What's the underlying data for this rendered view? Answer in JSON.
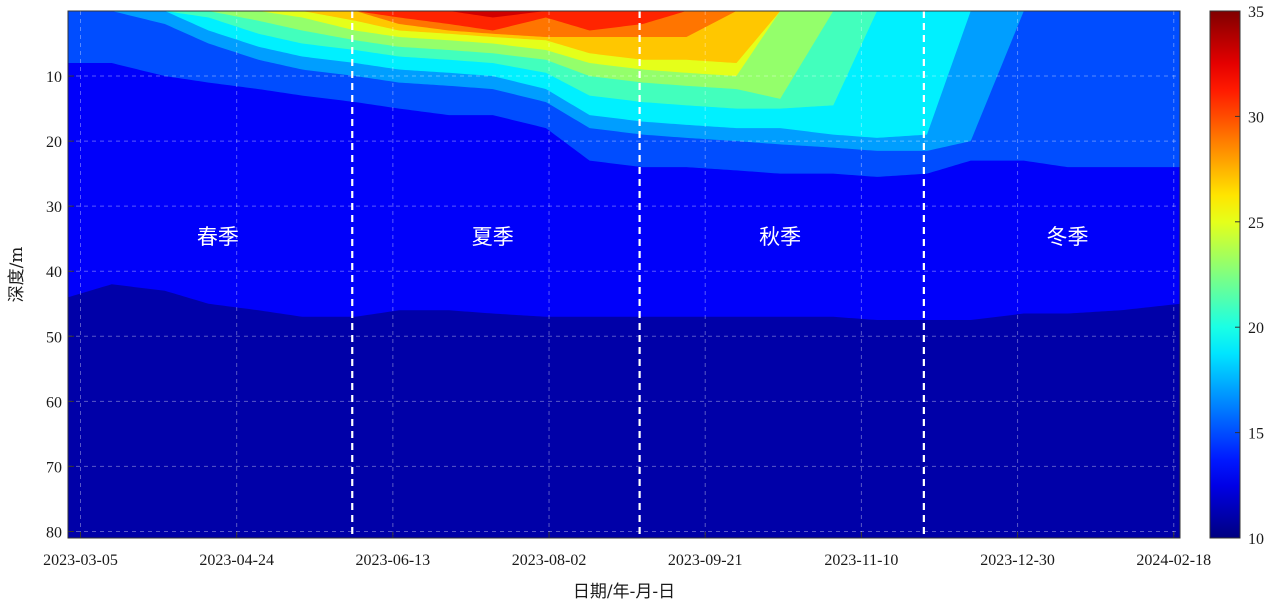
{
  "chart_data": {
    "type": "heatmap",
    "title": "",
    "xlabel": "日期/年-月-日",
    "ylabel": "深度/m",
    "x_ticks": [
      "2023-03-05",
      "2023-04-24",
      "2023-06-13",
      "2023-08-02",
      "2023-09-21",
      "2023-11-10",
      "2023-12-30",
      "2024-02-18"
    ],
    "x_range": [
      "2023-03-01",
      "2024-02-20"
    ],
    "y_ticks": [
      10,
      20,
      30,
      40,
      50,
      60,
      70,
      80
    ],
    "y_range": [
      0,
      81
    ],
    "y_inverted": true,
    "grid": true,
    "colorbar": {
      "ticks": [
        10,
        15,
        20,
        25,
        30,
        35
      ],
      "range": [
        10,
        35
      ],
      "colormap": "jet"
    },
    "season_boundaries": [
      "2023-05-31",
      "2023-08-31",
      "2023-11-30"
    ],
    "seasons": [
      {
        "label": "春季",
        "center_date": "2023-04-18"
      },
      {
        "label": "夏季",
        "center_date": "2023-07-15"
      },
      {
        "label": "秋季",
        "center_date": "2023-10-15"
      },
      {
        "label": "冬季",
        "center_date": "2024-01-15"
      }
    ],
    "isotherm_depths": {
      "dates": [
        "2023-03-01",
        "2023-03-15",
        "2023-04-01",
        "2023-04-15",
        "2023-05-01",
        "2023-05-15",
        "2023-06-01",
        "2023-06-15",
        "2023-07-01",
        "2023-07-15",
        "2023-08-01",
        "2023-08-15",
        "2023-09-01",
        "2023-09-15",
        "2023-10-01",
        "2023-10-15",
        "2023-11-01",
        "2023-11-15",
        "2023-12-01",
        "2023-12-15",
        "2024-01-01",
        "2024-01-15",
        "2024-02-01",
        "2024-02-20"
      ],
      "levels": [
        {
          "temp_c": 12,
          "depth_m": [
            44,
            42,
            43,
            45,
            46,
            47,
            47,
            46,
            46,
            46.5,
            47,
            47,
            47,
            47,
            47,
            47,
            47,
            47.5,
            47.5,
            47.5,
            46.5,
            46.5,
            46,
            45
          ]
        },
        {
          "temp_c": 14,
          "depth_m": [
            8,
            8,
            10,
            11,
            12,
            13,
            14,
            15,
            16,
            16,
            18,
            23,
            24,
            24,
            24.5,
            25,
            25,
            25.5,
            25,
            23,
            23,
            24,
            24,
            24
          ]
        },
        {
          "temp_c": 16,
          "depth_m": [
            0,
            0,
            2,
            5,
            7.5,
            9,
            10,
            11,
            11.5,
            12,
            14,
            18,
            19,
            19.5,
            20,
            20.5,
            21,
            21.5,
            21.5,
            20,
            0,
            0,
            0,
            0
          ]
        },
        {
          "temp_c": 18,
          "depth_m": [
            0,
            0,
            0,
            3,
            5.5,
            7,
            8,
            9,
            9.5,
            10,
            12,
            16,
            17,
            17.5,
            18,
            18,
            19,
            19.5,
            19,
            0,
            0,
            0,
            0,
            0
          ]
        },
        {
          "temp_c": 20,
          "depth_m": [
            0,
            0,
            0,
            1,
            3.5,
            5,
            6,
            7,
            7.5,
            8,
            9.5,
            13,
            14,
            14.5,
            15,
            15,
            14.5,
            0,
            0,
            0,
            0,
            0,
            0,
            0
          ]
        },
        {
          "temp_c": 22,
          "depth_m": [
            0,
            0,
            0,
            0,
            1.5,
            3,
            4.5,
            5.5,
            6,
            6.5,
            7.5,
            10,
            11,
            11.5,
            12,
            13.5,
            0,
            0,
            0,
            0,
            0,
            0,
            0,
            0
          ]
        },
        {
          "temp_c": 24,
          "depth_m": [
            0,
            0,
            0,
            0,
            0,
            1,
            3,
            4,
            4.5,
            5,
            6,
            8,
            9,
            9.5,
            10,
            0,
            0,
            0,
            0,
            0,
            0,
            0,
            0,
            0
          ]
        },
        {
          "temp_c": 26,
          "depth_m": [
            0,
            0,
            0,
            0,
            0,
            0,
            1.5,
            3,
            3.5,
            4,
            4.5,
            6.5,
            7.5,
            7.5,
            8,
            0,
            0,
            0,
            0,
            0,
            0,
            0,
            0,
            0
          ]
        },
        {
          "temp_c": 28,
          "depth_m": [
            0,
            0,
            0,
            0,
            0,
            0,
            0,
            2,
            3,
            3.5,
            4,
            4,
            4,
            4,
            0,
            0,
            0,
            0,
            0,
            0,
            0,
            0,
            0,
            0
          ]
        },
        {
          "temp_c": 30,
          "depth_m": [
            0,
            0,
            0,
            0,
            0,
            0,
            0,
            1,
            2,
            3,
            1,
            3,
            2,
            0,
            0,
            0,
            0,
            0,
            0,
            0,
            0,
            0,
            0,
            0
          ]
        },
        {
          "temp_c": 32,
          "depth_m": [
            0,
            0,
            0,
            0,
            0,
            0,
            0,
            0,
            0,
            1,
            0,
            0,
            0,
            0,
            0,
            0,
            0,
            0,
            0,
            0,
            0,
            0,
            0,
            0
          ]
        }
      ]
    }
  }
}
